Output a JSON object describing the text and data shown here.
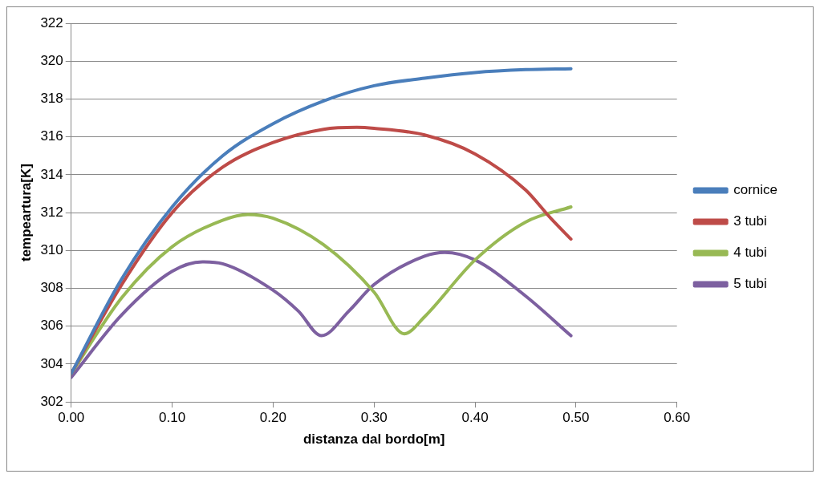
{
  "chart_data": {
    "type": "line",
    "xlabel": "distanza dal bordo[m]",
    "ylabel": "tempeartura[K]",
    "xlim": [
      0,
      0.6
    ],
    "xticks": [
      {
        "value": 0,
        "label": "0.00"
      },
      {
        "value": 0.1,
        "label": "0.10"
      },
      {
        "value": 0.2,
        "label": "0.20"
      },
      {
        "value": 0.3,
        "label": "0.30"
      },
      {
        "value": 0.4,
        "label": "0.40"
      },
      {
        "value": 0.5,
        "label": "0.50"
      },
      {
        "value": 0.6,
        "label": "0.60"
      }
    ],
    "ylim": [
      302,
      322
    ],
    "yticks": [
      302,
      304,
      306,
      308,
      310,
      312,
      314,
      316,
      318,
      320,
      322
    ],
    "grid": "y",
    "legend": "right",
    "marker": "none",
    "line_style": "solid",
    "series": [
      {
        "name": "cornice",
        "color": "#4a7ebb",
        "x": [
          0,
          0.05,
          0.1,
          0.15,
          0.2,
          0.25,
          0.3,
          0.35,
          0.4,
          0.45,
          0.495
        ],
        "values": [
          303.5,
          308.5,
          312.3,
          315,
          316.7,
          317.9,
          318.7,
          319.1,
          319.4,
          319.55,
          319.6
        ]
      },
      {
        "name": "3 tubi",
        "color": "#be4b48",
        "x": [
          0,
          0.05,
          0.1,
          0.15,
          0.2,
          0.25,
          0.283,
          0.3,
          0.35,
          0.4,
          0.45,
          0.475,
          0.495
        ],
        "values": [
          303.5,
          308.2,
          312,
          314.4,
          315.7,
          316.4,
          316.5,
          316.45,
          316.1,
          315.1,
          313.2,
          311.7,
          310.6
        ]
      },
      {
        "name": "4 tubi",
        "color": "#98b954",
        "x": [
          0,
          0.05,
          0.1,
          0.15,
          0.175,
          0.2,
          0.25,
          0.3,
          0.33,
          0.35,
          0.4,
          0.45,
          0.495
        ],
        "values": [
          303.5,
          307.5,
          310.2,
          311.6,
          311.9,
          311.7,
          310.3,
          307.8,
          305.6,
          306.5,
          309.5,
          311.5,
          312.3
        ]
      },
      {
        "name": "5 tubi",
        "color": "#7d60a0",
        "x": [
          0,
          0.05,
          0.1,
          0.13,
          0.15,
          0.2,
          0.225,
          0.248,
          0.275,
          0.3,
          0.35,
          0.37,
          0.4,
          0.45,
          0.495
        ],
        "values": [
          303.3,
          306.6,
          308.9,
          309.4,
          309.3,
          307.9,
          306.8,
          305.5,
          306.8,
          308.2,
          309.7,
          309.9,
          309.5,
          307.6,
          305.5
        ]
      }
    ]
  }
}
